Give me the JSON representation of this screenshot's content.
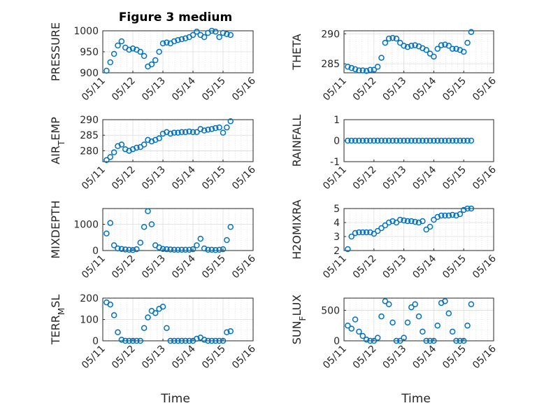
{
  "figure": {
    "title": "Figure 3 medium",
    "marker_color": "#0072bd",
    "axes_color": "#262626",
    "grid_color": "#dcdcdc",
    "x_axis_label": "Time"
  },
  "chart_data": [
    {
      "type": "scatter",
      "ylabel": "PRESSURE",
      "title": "Figure 3 medium",
      "xlim": [
        "05/11",
        "05/16"
      ],
      "xticks": [
        "05/11",
        "05/12",
        "05/13",
        "05/14",
        "05/15",
        "05/16"
      ],
      "ylim": [
        900,
        1000
      ],
      "yticks": [
        "900",
        "950",
        "1000"
      ],
      "grid": true,
      "x": [
        "05/11 03:00",
        "05/11 06:00",
        "05/11 09:00",
        "05/11 12:00",
        "05/11 15:00",
        "05/11 18:00",
        "05/11 21:00",
        "05/12 00:00",
        "05/12 03:00",
        "05/12 06:00",
        "05/12 09:00",
        "05/12 12:00",
        "05/12 15:00",
        "05/12 18:00",
        "05/12 21:00",
        "05/13 00:00",
        "05/13 03:00",
        "05/13 06:00",
        "05/13 09:00",
        "05/13 12:00",
        "05/13 15:00",
        "05/13 18:00",
        "05/13 21:00",
        "05/14 00:00",
        "05/14 03:00",
        "05/14 06:00",
        "05/14 09:00",
        "05/14 12:00",
        "05/14 15:00",
        "05/14 18:00",
        "05/14 21:00",
        "05/15 00:00",
        "05/15 03:00",
        "05/15 06:00"
      ],
      "values": [
        905,
        925,
        945,
        965,
        975,
        960,
        955,
        958,
        955,
        950,
        940,
        915,
        920,
        930,
        950,
        970,
        972,
        970,
        975,
        978,
        980,
        982,
        985,
        990,
        998,
        990,
        985,
        995,
        1000,
        998,
        985,
        995,
        992,
        990
      ]
    },
    {
      "type": "scatter",
      "ylabel": "THETA",
      "xlim": [
        "05/11",
        "05/16"
      ],
      "xticks": [
        "05/11",
        "05/12",
        "05/13",
        "05/14",
        "05/15",
        "05/16"
      ],
      "ylim": [
        283.5,
        290.5
      ],
      "yticks": [
        "285",
        "290"
      ],
      "grid": true,
      "x": [
        "05/11 03:00",
        "05/11 06:00",
        "05/11 09:00",
        "05/11 12:00",
        "05/11 15:00",
        "05/11 18:00",
        "05/11 21:00",
        "05/12 00:00",
        "05/12 03:00",
        "05/12 06:00",
        "05/12 09:00",
        "05/12 12:00",
        "05/12 15:00",
        "05/12 18:00",
        "05/12 21:00",
        "05/13 00:00",
        "05/13 03:00",
        "05/13 06:00",
        "05/13 09:00",
        "05/13 12:00",
        "05/13 15:00",
        "05/13 18:00",
        "05/13 21:00",
        "05/14 00:00",
        "05/14 03:00",
        "05/14 06:00",
        "05/14 09:00",
        "05/14 12:00",
        "05/14 15:00",
        "05/14 18:00",
        "05/14 21:00",
        "05/15 00:00",
        "05/15 03:00",
        "05/15 06:00"
      ],
      "values": [
        284.5,
        284.3,
        284.1,
        283.9,
        283.9,
        283.8,
        284,
        284,
        284.5,
        286,
        288.5,
        289.2,
        289.3,
        289.2,
        288.5,
        288,
        287.8,
        288,
        288.1,
        287.9,
        287.6,
        287.3,
        286.7,
        286.2,
        287.5,
        288.1,
        288.2,
        288,
        287.5,
        287.5,
        287.3,
        287,
        288.5,
        290.3
      ]
    },
    {
      "type": "scatter",
      "ylabel": "AIR_TEMP",
      "xlim": [
        "05/11",
        "05/16"
      ],
      "xticks": [
        "05/11",
        "05/12",
        "05/13",
        "05/14",
        "05/15",
        "05/16"
      ],
      "ylim": [
        276.5,
        290
      ],
      "yticks": [
        "280",
        "285",
        "290"
      ],
      "grid": true,
      "x": [
        "05/11 03:00",
        "05/11 06:00",
        "05/11 09:00",
        "05/11 12:00",
        "05/11 15:00",
        "05/11 18:00",
        "05/11 21:00",
        "05/12 00:00",
        "05/12 03:00",
        "05/12 06:00",
        "05/12 09:00",
        "05/12 12:00",
        "05/12 15:00",
        "05/12 18:00",
        "05/12 21:00",
        "05/13 00:00",
        "05/13 03:00",
        "05/13 06:00",
        "05/13 09:00",
        "05/13 12:00",
        "05/13 15:00",
        "05/13 18:00",
        "05/13 21:00",
        "05/14 00:00",
        "05/14 03:00",
        "05/14 06:00",
        "05/14 09:00",
        "05/14 12:00",
        "05/14 15:00",
        "05/14 18:00",
        "05/14 21:00",
        "05/15 00:00",
        "05/15 03:00",
        "05/15 06:00"
      ],
      "values": [
        277,
        278,
        279.5,
        281.5,
        282,
        280.5,
        280,
        280.5,
        281,
        281.2,
        282,
        283.5,
        283,
        283.5,
        284,
        285.5,
        286,
        285.5,
        285.8,
        285.8,
        286,
        286,
        286.2,
        286,
        286,
        287,
        286.5,
        286.8,
        287,
        287.3,
        287.5,
        285.8,
        287.5,
        289.5
      ]
    },
    {
      "type": "scatter",
      "ylabel": "RAINFALL",
      "xlim": [
        "05/11",
        "05/16"
      ],
      "xticks": [
        "05/11",
        "05/12",
        "05/13",
        "05/14",
        "05/15",
        "05/16"
      ],
      "ylim": [
        -1,
        1
      ],
      "yticks": [
        "-1",
        "0",
        "1"
      ],
      "grid": false,
      "x": [
        "05/11 03:00",
        "05/11 06:00",
        "05/11 09:00",
        "05/11 12:00",
        "05/11 15:00",
        "05/11 18:00",
        "05/11 21:00",
        "05/12 00:00",
        "05/12 03:00",
        "05/12 06:00",
        "05/12 09:00",
        "05/12 12:00",
        "05/12 15:00",
        "05/12 18:00",
        "05/12 21:00",
        "05/13 00:00",
        "05/13 03:00",
        "05/13 06:00",
        "05/13 09:00",
        "05/13 12:00",
        "05/13 15:00",
        "05/13 18:00",
        "05/13 21:00",
        "05/14 00:00",
        "05/14 03:00",
        "05/14 06:00",
        "05/14 09:00",
        "05/14 12:00",
        "05/14 15:00",
        "05/14 18:00",
        "05/14 21:00",
        "05/15 00:00",
        "05/15 03:00",
        "05/15 06:00"
      ],
      "values": [
        0,
        0,
        0,
        0,
        0,
        0,
        0,
        0,
        0,
        0,
        0,
        0,
        0,
        0,
        0,
        0,
        0,
        0,
        0,
        0,
        0,
        0,
        0,
        0,
        0,
        0,
        0,
        0,
        0,
        0,
        0,
        0,
        0,
        0
      ]
    },
    {
      "type": "scatter",
      "ylabel": "MIXDEPTH",
      "xlim": [
        "05/11",
        "05/16"
      ],
      "xticks": [
        "05/11",
        "05/12",
        "05/13",
        "05/14",
        "05/15",
        "05/16"
      ],
      "ylim": [
        0,
        1600
      ],
      "yticks": [
        "0",
        "1000"
      ],
      "grid": true,
      "x": [
        "05/11 03:00",
        "05/11 06:00",
        "05/11 09:00",
        "05/11 12:00",
        "05/11 15:00",
        "05/11 18:00",
        "05/11 21:00",
        "05/12 00:00",
        "05/12 03:00",
        "05/12 06:00",
        "05/12 09:00",
        "05/12 12:00",
        "05/12 15:00",
        "05/12 18:00",
        "05/12 21:00",
        "05/13 00:00",
        "05/13 03:00",
        "05/13 06:00",
        "05/13 09:00",
        "05/13 12:00",
        "05/13 15:00",
        "05/13 18:00",
        "05/13 21:00",
        "05/14 00:00",
        "05/14 03:00",
        "05/14 06:00",
        "05/14 09:00",
        "05/14 12:00",
        "05/14 15:00",
        "05/14 18:00",
        "05/14 21:00",
        "05/15 00:00",
        "05/15 03:00",
        "05/15 06:00"
      ],
      "values": [
        650,
        1050,
        200,
        80,
        60,
        40,
        30,
        20,
        50,
        300,
        900,
        1500,
        1000,
        200,
        120,
        60,
        50,
        40,
        30,
        30,
        30,
        30,
        30,
        50,
        200,
        450,
        80,
        30,
        30,
        20,
        30,
        50,
        400,
        900
      ]
    },
    {
      "type": "scatter",
      "ylabel": "H2OMIXRA",
      "xlim": [
        "05/11",
        "05/16"
      ],
      "xticks": [
        "05/11",
        "05/12",
        "05/13",
        "05/14",
        "05/15",
        "05/16"
      ],
      "ylim": [
        2,
        5
      ],
      "yticks": [
        "2",
        "3",
        "4",
        "5"
      ],
      "grid": true,
      "x": [
        "05/11 03:00",
        "05/11 06:00",
        "05/11 09:00",
        "05/11 12:00",
        "05/11 15:00",
        "05/11 18:00",
        "05/11 21:00",
        "05/12 00:00",
        "05/12 03:00",
        "05/12 06:00",
        "05/12 09:00",
        "05/12 12:00",
        "05/12 15:00",
        "05/12 18:00",
        "05/12 21:00",
        "05/13 00:00",
        "05/13 03:00",
        "05/13 06:00",
        "05/13 09:00",
        "05/13 12:00",
        "05/13 15:00",
        "05/13 18:00",
        "05/13 21:00",
        "05/14 00:00",
        "05/14 03:00",
        "05/14 06:00",
        "05/14 09:00",
        "05/14 12:00",
        "05/14 15:00",
        "05/14 18:00",
        "05/14 21:00",
        "05/15 00:00",
        "05/15 03:00",
        "05/15 06:00"
      ],
      "values": [
        2.1,
        3.0,
        3.25,
        3.3,
        3.3,
        3.3,
        3.3,
        3.2,
        3.4,
        3.6,
        3.8,
        4.0,
        4.1,
        4.0,
        4.2,
        4.15,
        4.1,
        4.1,
        4.05,
        4.0,
        4.1,
        3.5,
        3.7,
        4.2,
        4.4,
        4.5,
        4.5,
        4.5,
        4.55,
        4.5,
        4.6,
        4.9,
        5.0,
        5.0
      ]
    },
    {
      "type": "scatter",
      "ylabel": "TERR_MSL",
      "xlim": [
        "05/11",
        "05/16"
      ],
      "xticks": [
        "05/11",
        "05/12",
        "05/13",
        "05/14",
        "05/15",
        "05/16"
      ],
      "ylim": [
        0,
        200
      ],
      "yticks": [
        "0",
        "100",
        "200"
      ],
      "grid": true,
      "x": [
        "05/11 03:00",
        "05/11 06:00",
        "05/11 09:00",
        "05/11 12:00",
        "05/11 15:00",
        "05/11 18:00",
        "05/11 21:00",
        "05/12 00:00",
        "05/12 03:00",
        "05/12 06:00",
        "05/12 09:00",
        "05/12 12:00",
        "05/12 15:00",
        "05/12 18:00",
        "05/12 21:00",
        "05/13 00:00",
        "05/13 03:00",
        "05/13 06:00",
        "05/13 09:00",
        "05/13 12:00",
        "05/13 15:00",
        "05/13 18:00",
        "05/13 21:00",
        "05/14 00:00",
        "05/14 03:00",
        "05/14 06:00",
        "05/14 09:00",
        "05/14 12:00",
        "05/14 15:00",
        "05/14 18:00",
        "05/14 21:00",
        "05/15 00:00",
        "05/15 03:00",
        "05/15 06:00"
      ],
      "values": [
        180,
        170,
        120,
        40,
        5,
        0,
        0,
        0,
        0,
        0,
        60,
        110,
        140,
        130,
        150,
        160,
        60,
        0,
        0,
        0,
        0,
        0,
        0,
        0,
        10,
        15,
        5,
        0,
        0,
        0,
        0,
        0,
        40,
        45
      ]
    },
    {
      "type": "scatter",
      "ylabel": "SUN_FLUX",
      "xlim": [
        "05/11",
        "05/16"
      ],
      "xticks": [
        "05/11",
        "05/12",
        "05/13",
        "05/14",
        "05/15",
        "05/16"
      ],
      "ylim": [
        0,
        700
      ],
      "yticks": [
        "0",
        "500"
      ],
      "grid": true,
      "x": [
        "05/11 03:00",
        "05/11 06:00",
        "05/11 09:00",
        "05/11 12:00",
        "05/11 15:00",
        "05/11 18:00",
        "05/11 21:00",
        "05/12 00:00",
        "05/12 03:00",
        "05/12 06:00",
        "05/12 09:00",
        "05/12 12:00",
        "05/12 15:00",
        "05/12 18:00",
        "05/12 21:00",
        "05/13 00:00",
        "05/13 03:00",
        "05/13 06:00",
        "05/13 09:00",
        "05/13 12:00",
        "05/13 15:00",
        "05/13 18:00",
        "05/13 21:00",
        "05/14 00:00",
        "05/14 03:00",
        "05/14 06:00",
        "05/14 09:00",
        "05/14 12:00",
        "05/14 15:00",
        "05/14 18:00",
        "05/14 21:00",
        "05/15 00:00",
        "05/15 03:00",
        "05/15 06:00"
      ],
      "values": [
        250,
        200,
        350,
        150,
        80,
        20,
        0,
        0,
        50,
        400,
        650,
        600,
        300,
        0,
        0,
        50,
        300,
        550,
        600,
        400,
        150,
        0,
        0,
        0,
        250,
        620,
        650,
        450,
        150,
        0,
        0,
        0,
        250,
        600
      ]
    }
  ]
}
